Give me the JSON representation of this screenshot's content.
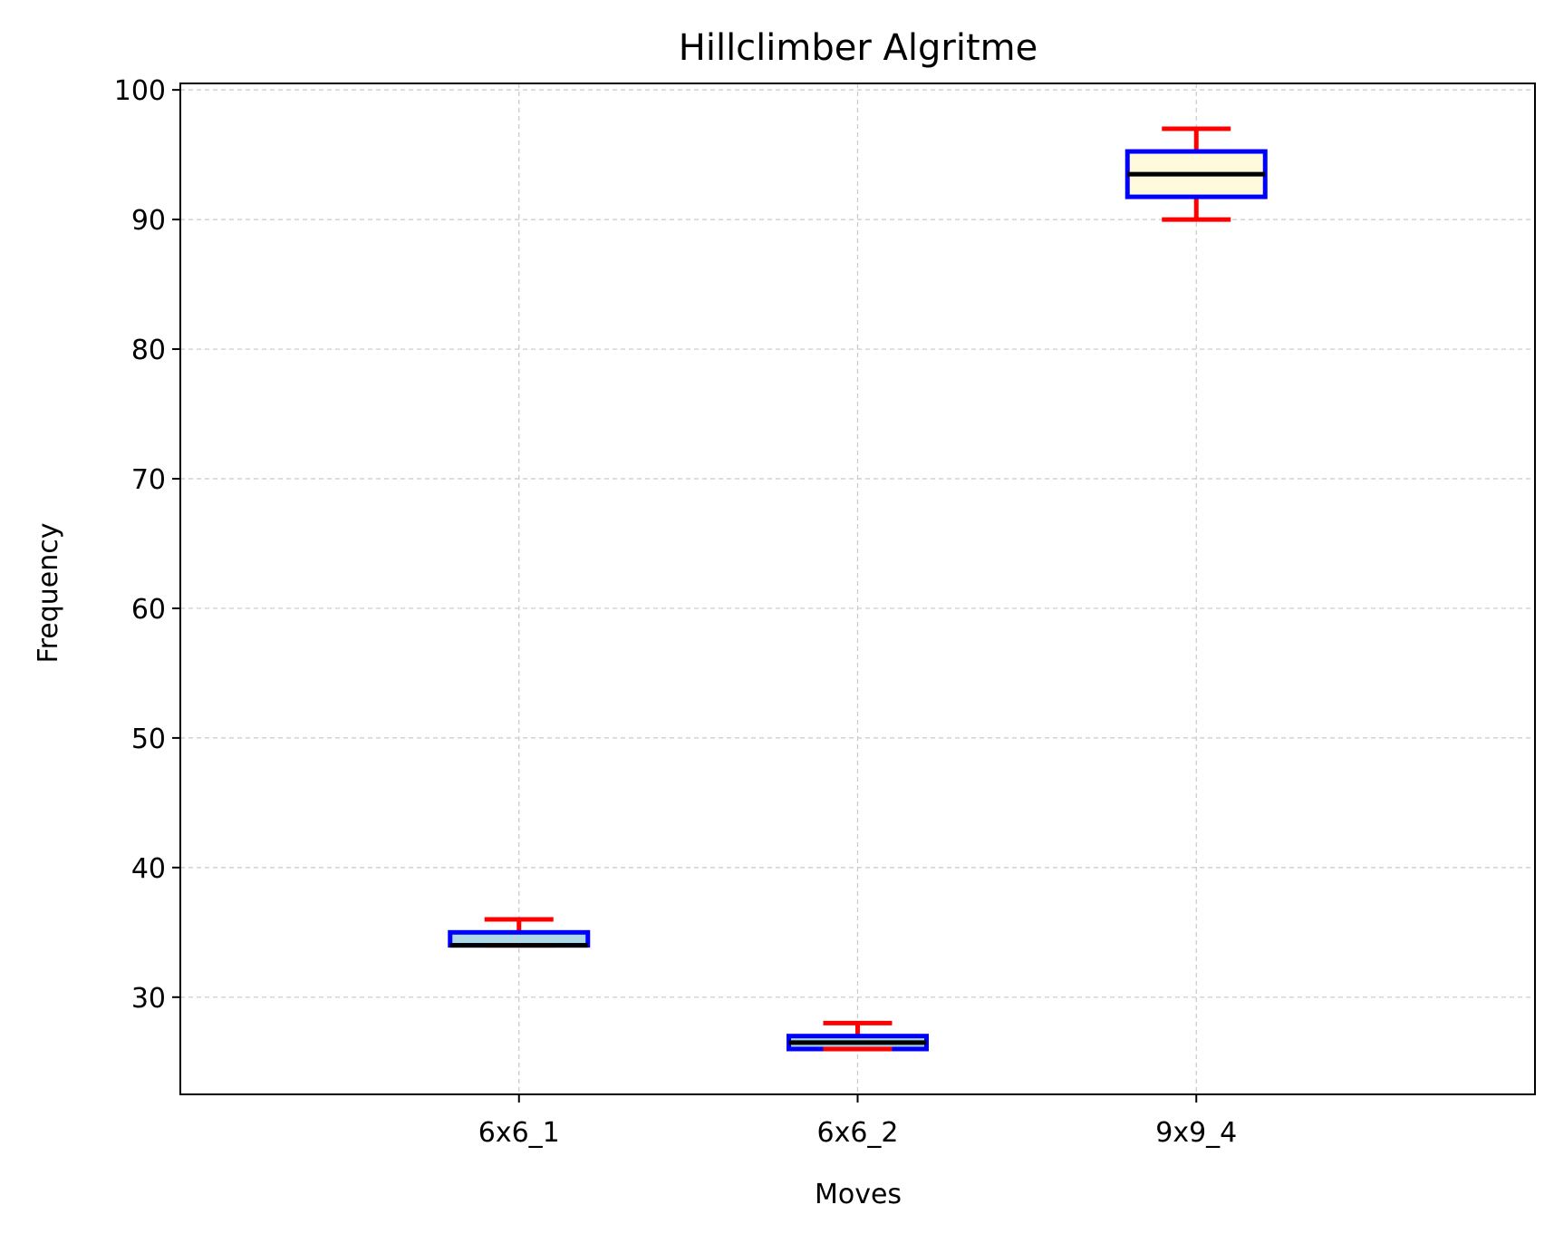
{
  "chart_data": {
    "type": "box",
    "title": "Hillclimber Algritme",
    "xlabel": "Moves",
    "ylabel": "Frequency",
    "ylim": [
      22.5,
      100.5
    ],
    "yticks": [
      30,
      40,
      50,
      60,
      70,
      80,
      90,
      100
    ],
    "grid": true,
    "categories": [
      "6x6_1",
      "6x6_2",
      "9x9_4"
    ],
    "boxes": [
      {
        "category": "6x6_1",
        "whisker_low": 34,
        "q1": 34,
        "median": 34,
        "q3": 35,
        "whisker_high": 36
      },
      {
        "category": "6x6_2",
        "whisker_low": 26,
        "q1": 26,
        "median": 26.5,
        "q3": 27,
        "whisker_high": 28
      },
      {
        "category": "9x9_4",
        "whisker_low": 90,
        "q1": 91.75,
        "median": 93.5,
        "q3": 95.25,
        "whisker_high": 97
      }
    ],
    "colors": {
      "box_edge": "#0000ff",
      "median": "#000000",
      "whisker": "#ff0000",
      "grid": "#c8c8c8",
      "box_fills": [
        "#add8e6",
        "#add8e6",
        "#fffadc"
      ]
    }
  }
}
